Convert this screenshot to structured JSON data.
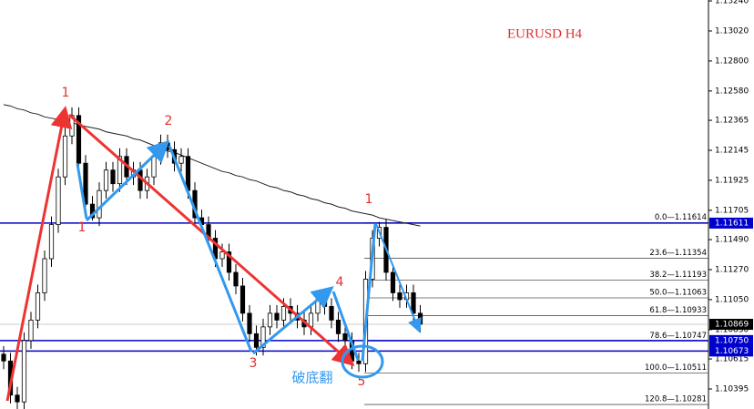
{
  "chart_data": {
    "type": "candlestick",
    "title": "EURUSD H4",
    "ylim": [
      1.10248,
      1.13247
    ],
    "yticks": [
      {
        "value": 1.1324,
        "label": "1.13240"
      },
      {
        "value": 1.1302,
        "label": "1.13020"
      },
      {
        "value": 1.128,
        "label": "1.12800"
      },
      {
        "value": 1.1258,
        "label": "1.12580"
      },
      {
        "value": 1.12365,
        "label": "1.12365"
      },
      {
        "value": 1.12145,
        "label": "1.12145"
      },
      {
        "value": 1.11925,
        "label": "1.11925"
      },
      {
        "value": 1.11705,
        "label": "1.11705"
      },
      {
        "value": 1.1149,
        "label": "1.11490"
      },
      {
        "value": 1.1127,
        "label": "1.11270"
      },
      {
        "value": 1.1105,
        "label": "1.11050"
      },
      {
        "value": 1.1083,
        "label": "1.10830"
      },
      {
        "value": 1.10615,
        "label": "1.10615"
      },
      {
        "value": 1.10395,
        "label": "1.10395"
      }
    ],
    "ohlc": [
      [
        1.1065,
        1.1071,
        1.1054,
        1.106
      ],
      [
        1.106,
        1.1066,
        1.1029,
        1.1035
      ],
      [
        1.1035,
        1.1041,
        1.1024,
        1.103
      ],
      [
        1.103,
        1.1081,
        1.1024,
        1.1075
      ],
      [
        1.1075,
        1.1096,
        1.1069,
        1.109
      ],
      [
        1.109,
        1.1116,
        1.1084,
        1.111
      ],
      [
        1.111,
        1.1141,
        1.1104,
        1.1135
      ],
      [
        1.1135,
        1.1166,
        1.1129,
        1.116
      ],
      [
        1.116,
        1.1201,
        1.1154,
        1.1195
      ],
      [
        1.1195,
        1.1231,
        1.1189,
        1.1225
      ],
      [
        1.1225,
        1.1246,
        1.1219,
        1.124
      ],
      [
        1.124,
        1.1246,
        1.1199,
        1.1205
      ],
      [
        1.1205,
        1.1211,
        1.1169,
        1.1175
      ],
      [
        1.1175,
        1.1181,
        1.1163,
        1.1165
      ],
      [
        1.1165,
        1.1191,
        1.1159,
        1.1185
      ],
      [
        1.1185,
        1.1206,
        1.1179,
        1.12
      ],
      [
        1.12,
        1.1206,
        1.1184,
        1.119
      ],
      [
        1.119,
        1.1216,
        1.1184,
        1.121
      ],
      [
        1.121,
        1.1216,
        1.1189,
        1.1195
      ],
      [
        1.1195,
        1.1206,
        1.1189,
        1.12
      ],
      [
        1.12,
        1.1206,
        1.1179,
        1.1185
      ],
      [
        1.1185,
        1.1201,
        1.1179,
        1.1195
      ],
      [
        1.1195,
        1.1216,
        1.1189,
        1.121
      ],
      [
        1.121,
        1.1226,
        1.1204,
        1.122
      ],
      [
        1.122,
        1.1226,
        1.1209,
        1.1215
      ],
      [
        1.1215,
        1.1221,
        1.1199,
        1.1205
      ],
      [
        1.1205,
        1.1216,
        1.1199,
        1.121
      ],
      [
        1.121,
        1.1216,
        1.1179,
        1.1185
      ],
      [
        1.1185,
        1.1191,
        1.1159,
        1.1165
      ],
      [
        1.1165,
        1.1171,
        1.1154,
        1.116
      ],
      [
        1.116,
        1.1166,
        1.1144,
        1.115
      ],
      [
        1.115,
        1.1156,
        1.1129,
        1.1135
      ],
      [
        1.1135,
        1.1146,
        1.1129,
        1.114
      ],
      [
        1.114,
        1.1146,
        1.1119,
        1.1125
      ],
      [
        1.1125,
        1.1131,
        1.1109,
        1.1115
      ],
      [
        1.1115,
        1.1121,
        1.1089,
        1.1095
      ],
      [
        1.1095,
        1.1101,
        1.1074,
        1.108
      ],
      [
        1.108,
        1.1086,
        1.1064,
        1.107
      ],
      [
        1.107,
        1.1091,
        1.1064,
        1.1085
      ],
      [
        1.1085,
        1.1101,
        1.1079,
        1.1095
      ],
      [
        1.1095,
        1.1101,
        1.1084,
        1.109
      ],
      [
        1.109,
        1.1106,
        1.1084,
        1.11
      ],
      [
        1.11,
        1.1106,
        1.1089,
        1.1095
      ],
      [
        1.1095,
        1.1101,
        1.1084,
        1.109
      ],
      [
        1.109,
        1.1096,
        1.1079,
        1.1085
      ],
      [
        1.1085,
        1.1101,
        1.1079,
        1.1095
      ],
      [
        1.1095,
        1.1111,
        1.1089,
        1.1105
      ],
      [
        1.1105,
        1.1111,
        1.1094,
        1.11
      ],
      [
        1.11,
        1.1106,
        1.1084,
        1.109
      ],
      [
        1.109,
        1.1096,
        1.1074,
        1.108
      ],
      [
        1.108,
        1.1086,
        1.1069,
        1.1075
      ],
      [
        1.1075,
        1.1081,
        1.1054,
        1.106
      ],
      [
        1.106,
        1.1066,
        1.1052,
        1.1058
      ],
      [
        1.1058,
        1.1126,
        1.1052,
        1.112
      ],
      [
        1.112,
        1.1156,
        1.1114,
        1.115
      ],
      [
        1.115,
        1.1162,
        1.1144,
        1.1158
      ],
      [
        1.1158,
        1.1164,
        1.1119,
        1.1125
      ],
      [
        1.1125,
        1.1131,
        1.1104,
        1.111
      ],
      [
        1.111,
        1.1116,
        1.1099,
        1.1105
      ],
      [
        1.1105,
        1.1116,
        1.1099,
        1.111
      ],
      [
        1.111,
        1.1116,
        1.1089,
        1.1095
      ],
      [
        1.1095,
        1.1101,
        1.1081,
        1.1087
      ]
    ],
    "ma_values": [
      1.1248,
      1.1247,
      1.1245,
      1.1244,
      1.1242,
      1.1241,
      1.1239,
      1.1238,
      1.1237,
      1.1236,
      1.1235,
      1.1233,
      1.1232,
      1.1231,
      1.123,
      1.1228,
      1.1227,
      1.1226,
      1.1225,
      1.1223,
      1.1222,
      1.122,
      1.1218,
      1.1216,
      1.1214,
      1.1213,
      1.1211,
      1.1209,
      1.1207,
      1.1205,
      1.1203,
      1.1201,
      1.1199,
      1.1198,
      1.1196,
      1.1195,
      1.1193,
      1.1192,
      1.119,
      1.1188,
      1.1187,
      1.1185,
      1.1184,
      1.1182,
      1.1181,
      1.1179,
      1.1178,
      1.1176,
      1.1175,
      1.1173,
      1.1172,
      1.117,
      1.1169,
      1.1168,
      1.1167,
      1.1165,
      1.1164,
      1.1163,
      1.1162,
      1.1161,
      1.116,
      1.1159
    ],
    "ma_color": "#222222",
    "fib_levels": [
      {
        "value": 1.11614,
        "label": "0.0—1.11614"
      },
      {
        "value": 1.11354,
        "label": "23.6—1.11354"
      },
      {
        "value": 1.11193,
        "label": "38.2—1.11193"
      },
      {
        "value": 1.11063,
        "label": "50.0—1.11063"
      },
      {
        "value": 1.10933,
        "label": "61.8—1.10933"
      },
      {
        "value": 1.10747,
        "label": "78.6—1.10747"
      },
      {
        "value": 1.10511,
        "label": "100.0—1.10511"
      },
      {
        "value": 1.10281,
        "label": "120.8—1.10281"
      }
    ],
    "price_lines": [
      {
        "value": 1.11611,
        "label": "1.11611",
        "color": "#0000cc"
      },
      {
        "value": 1.1075,
        "label": "1.10750",
        "color": "#0000cc"
      },
      {
        "value": 1.10673,
        "label": "1.10673",
        "color": "#0000cc"
      }
    ],
    "current_price": {
      "value": 1.10869,
      "label": "1.10869",
      "color": "#000000"
    },
    "wave_labels": [
      "1",
      "1",
      "2",
      "3",
      "4",
      "5",
      "1"
    ],
    "annotation": "破底翻"
  }
}
